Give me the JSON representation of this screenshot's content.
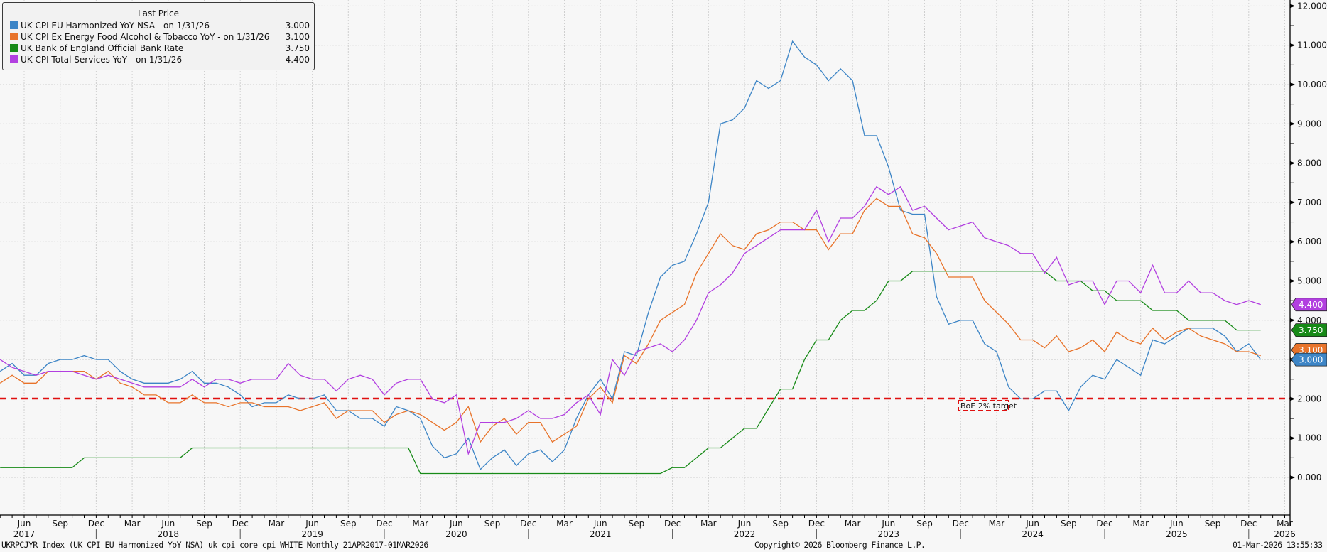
{
  "legend": {
    "title": "Last Price",
    "items": [
      {
        "label": "UK CPI EU Harmonized YoY NSA -  on 1/31/26",
        "value": "3.000",
        "color": "#3d85c6"
      },
      {
        "label": "UK CPI Ex Energy Food Alcohol & Tobacco YoY -  on 1/31/26",
        "value": "3.100",
        "color": "#e8732a"
      },
      {
        "label": "UK Bank of England Official Bank Rate",
        "value": "3.750",
        "color": "#178a17"
      },
      {
        "label": "UK CPI Total Services YoY -  on 1/31/26",
        "value": "4.400",
        "color": "#b23fe0"
      }
    ]
  },
  "footer": {
    "left": "UKRPCJYR Index (UK CPI EU Harmonized YoY NSA) uk cpi core cpi WHITE Monthly 21APR2017-01MAR2026",
    "center": "Copyright© 2026 Bloomberg Finance L.P.",
    "right": "01-Mar-2026 13:55:33"
  },
  "annotation": {
    "label": "BoE 2% target",
    "value": 2.0,
    "color": "#e01010"
  },
  "chart_data": {
    "type": "line",
    "title": "",
    "xlabel": "",
    "ylabel": "",
    "ylim": [
      -0.8,
      12.2
    ],
    "grid": true,
    "legend_position": "top-left",
    "y_ticks": [
      "0.000",
      "1.000",
      "2.000",
      "3.000",
      "4.000",
      "5.000",
      "6.000",
      "7.000",
      "8.000",
      "9.000",
      "10.000",
      "11.000",
      "12.000"
    ],
    "x_tick_months": [
      "Jun",
      "Sep",
      "Dec",
      "Mar",
      "Jun",
      "Sep",
      "Dec",
      "Mar",
      "Jun",
      "Sep",
      "Dec",
      "Mar",
      "Jun",
      "Sep",
      "Dec",
      "Mar",
      "Jun",
      "Sep",
      "Dec",
      "Mar",
      "Jun",
      "Sep",
      "Dec",
      "Mar",
      "Jun",
      "Sep",
      "Dec",
      "Mar",
      "Jun",
      "Sep",
      "Dec",
      "Mar",
      "Jun",
      "Sep",
      "Dec",
      "Mar"
    ],
    "x_tick_years": [
      "2017",
      "2018",
      "2019",
      "2020",
      "2021",
      "2022",
      "2023",
      "2024",
      "2025",
      "2026"
    ],
    "x_start": "2017-04",
    "x_end": "2026-01",
    "series": [
      {
        "name": "UK CPI EU Harmonized YoY NSA",
        "color": "#3d85c6",
        "last": "3.000",
        "values": [
          2.7,
          2.9,
          2.6,
          2.6,
          2.9,
          3.0,
          3.0,
          3.1,
          3.0,
          3.0,
          2.7,
          2.5,
          2.4,
          2.4,
          2.4,
          2.5,
          2.7,
          2.4,
          2.4,
          2.3,
          2.1,
          1.8,
          1.9,
          1.9,
          2.1,
          2.0,
          2.0,
          2.1,
          1.7,
          1.7,
          1.5,
          1.5,
          1.3,
          1.8,
          1.7,
          1.5,
          0.8,
          0.5,
          0.6,
          1.0,
          0.2,
          0.5,
          0.7,
          0.3,
          0.6,
          0.7,
          0.4,
          0.7,
          1.5,
          2.1,
          2.5,
          2.0,
          3.2,
          3.1,
          4.2,
          5.1,
          5.4,
          5.5,
          6.2,
          7.0,
          9.0,
          9.1,
          9.4,
          10.1,
          9.9,
          10.1,
          11.1,
          10.7,
          10.5,
          10.1,
          10.4,
          10.1,
          8.7,
          8.7,
          7.9,
          6.8,
          6.7,
          6.7,
          4.6,
          3.9,
          4.0,
          4.0,
          3.4,
          3.2,
          2.3,
          2.0,
          2.0,
          2.2,
          2.2,
          1.7,
          2.3,
          2.6,
          2.5,
          3.0,
          2.8,
          2.6,
          3.5,
          3.4,
          3.6,
          3.8,
          3.8,
          3.8,
          3.6,
          3.2,
          3.4,
          3.0
        ]
      },
      {
        "name": "UK CPI Ex Energy Food Alcohol & Tobacco YoY",
        "color": "#e8732a",
        "last": "3.100",
        "values": [
          2.4,
          2.6,
          2.4,
          2.4,
          2.7,
          2.7,
          2.7,
          2.7,
          2.5,
          2.7,
          2.4,
          2.3,
          2.1,
          2.1,
          1.9,
          1.9,
          2.1,
          1.9,
          1.9,
          1.8,
          1.9,
          1.9,
          1.8,
          1.8,
          1.8,
          1.7,
          1.8,
          1.9,
          1.5,
          1.7,
          1.7,
          1.7,
          1.4,
          1.6,
          1.7,
          1.6,
          1.4,
          1.2,
          1.4,
          1.8,
          0.9,
          1.3,
          1.5,
          1.1,
          1.4,
          1.4,
          0.9,
          1.1,
          1.3,
          2.0,
          2.3,
          1.9,
          3.1,
          2.9,
          3.4,
          4.0,
          4.2,
          4.4,
          5.2,
          5.7,
          6.2,
          5.9,
          5.8,
          6.2,
          6.3,
          6.5,
          6.5,
          6.3,
          6.3,
          5.8,
          6.2,
          6.2,
          6.8,
          7.1,
          6.9,
          6.9,
          6.2,
          6.1,
          5.7,
          5.1,
          5.1,
          5.1,
          4.5,
          4.2,
          3.9,
          3.5,
          3.5,
          3.3,
          3.6,
          3.2,
          3.3,
          3.5,
          3.2,
          3.7,
          3.5,
          3.4,
          3.8,
          3.5,
          3.7,
          3.8,
          3.6,
          3.5,
          3.4,
          3.2,
          3.2,
          3.1
        ]
      },
      {
        "name": "UK Bank of England Official Bank Rate",
        "color": "#178a17",
        "last": "3.750",
        "values": [
          0.25,
          0.25,
          0.25,
          0.25,
          0.25,
          0.25,
          0.25,
          0.5,
          0.5,
          0.5,
          0.5,
          0.5,
          0.5,
          0.5,
          0.5,
          0.5,
          0.75,
          0.75,
          0.75,
          0.75,
          0.75,
          0.75,
          0.75,
          0.75,
          0.75,
          0.75,
          0.75,
          0.75,
          0.75,
          0.75,
          0.75,
          0.75,
          0.75,
          0.75,
          0.75,
          0.1,
          0.1,
          0.1,
          0.1,
          0.1,
          0.1,
          0.1,
          0.1,
          0.1,
          0.1,
          0.1,
          0.1,
          0.1,
          0.1,
          0.1,
          0.1,
          0.1,
          0.1,
          0.1,
          0.1,
          0.1,
          0.25,
          0.25,
          0.5,
          0.75,
          0.75,
          1.0,
          1.25,
          1.25,
          1.75,
          2.25,
          2.25,
          3.0,
          3.5,
          3.5,
          4.0,
          4.25,
          4.25,
          4.5,
          5.0,
          5.0,
          5.25,
          5.25,
          5.25,
          5.25,
          5.25,
          5.25,
          5.25,
          5.25,
          5.25,
          5.25,
          5.25,
          5.25,
          5.0,
          5.0,
          5.0,
          4.75,
          4.75,
          4.5,
          4.5,
          4.5,
          4.25,
          4.25,
          4.25,
          4.0,
          4.0,
          4.0,
          4.0,
          3.75,
          3.75,
          3.75
        ]
      },
      {
        "name": "UK CPI Total Services YoY",
        "color": "#b23fe0",
        "last": "4.400",
        "values": [
          3.0,
          2.8,
          2.7,
          2.6,
          2.7,
          2.7,
          2.7,
          2.6,
          2.5,
          2.6,
          2.5,
          2.4,
          2.3,
          2.3,
          2.3,
          2.3,
          2.5,
          2.3,
          2.5,
          2.5,
          2.4,
          2.5,
          2.5,
          2.5,
          2.9,
          2.6,
          2.5,
          2.5,
          2.2,
          2.5,
          2.6,
          2.5,
          2.1,
          2.4,
          2.5,
          2.5,
          2.0,
          1.9,
          2.1,
          0.6,
          1.4,
          1.4,
          1.4,
          1.5,
          1.7,
          1.5,
          1.5,
          1.6,
          1.9,
          2.1,
          1.6,
          3.0,
          2.6,
          3.2,
          3.3,
          3.4,
          3.2,
          3.5,
          4.0,
          4.7,
          4.9,
          5.2,
          5.7,
          5.9,
          6.1,
          6.3,
          6.3,
          6.3,
          6.8,
          6.0,
          6.6,
          6.6,
          6.9,
          7.4,
          7.2,
          7.4,
          6.8,
          6.9,
          6.6,
          6.3,
          6.4,
          6.5,
          6.1,
          6.0,
          5.9,
          5.7,
          5.7,
          5.2,
          5.6,
          4.9,
          5.0,
          5.0,
          4.4,
          5.0,
          5.0,
          4.7,
          5.4,
          4.7,
          4.7,
          5.0,
          4.7,
          4.7,
          4.5,
          4.4,
          4.5,
          4.4
        ]
      }
    ]
  }
}
